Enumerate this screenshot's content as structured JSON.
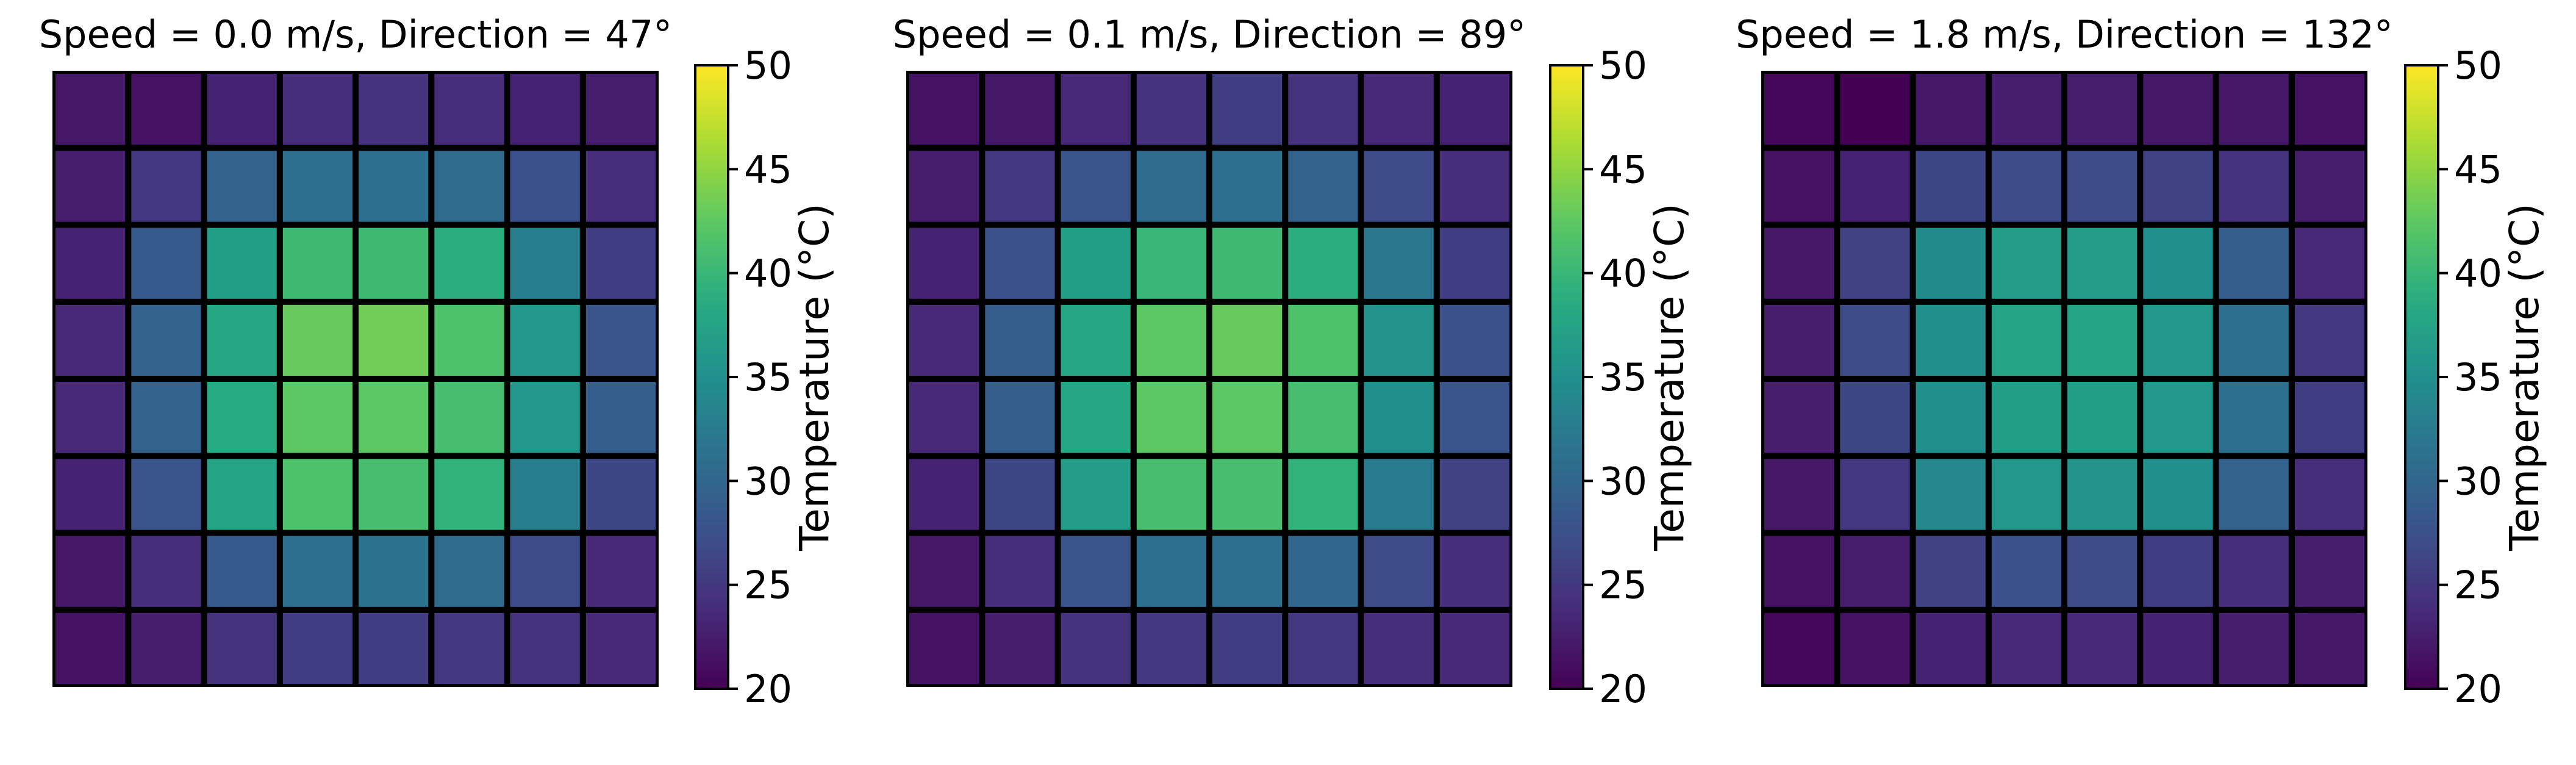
{
  "chart_data": [
    {
      "type": "heatmap",
      "title": "Speed = 0.0 m/s, Direction = 47°",
      "colorbar": {
        "label": "Temperature (°C)",
        "range": [
          20,
          50
        ],
        "ticks": [
          "20",
          "25",
          "30",
          "35",
          "40",
          "45",
          "50"
        ],
        "colormap": "viridis"
      },
      "grid": [
        [
          22.0,
          21.5,
          23.0,
          24.0,
          24.5,
          24.0,
          23.0,
          22.5
        ],
        [
          22.5,
          25.0,
          29.5,
          31.0,
          31.0,
          30.5,
          27.5,
          24.0
        ],
        [
          23.0,
          28.5,
          37.0,
          40.5,
          40.5,
          39.0,
          33.0,
          25.5
        ],
        [
          23.5,
          29.5,
          38.0,
          43.0,
          43.5,
          41.5,
          36.0,
          28.0
        ],
        [
          23.5,
          29.5,
          38.5,
          42.5,
          42.5,
          41.0,
          36.0,
          29.0
        ],
        [
          23.0,
          28.0,
          37.5,
          41.5,
          41.0,
          39.5,
          33.0,
          26.5
        ],
        [
          22.0,
          24.0,
          28.5,
          31.0,
          31.5,
          30.5,
          27.0,
          23.5
        ],
        [
          21.5,
          22.5,
          24.5,
          25.5,
          25.5,
          25.0,
          24.5,
          23.5
        ]
      ]
    },
    {
      "type": "heatmap",
      "title": "Speed = 0.1 m/s, Direction = 89°",
      "colorbar": {
        "label": "Temperature (°C)",
        "range": [
          20,
          50
        ],
        "ticks": [
          "20",
          "25",
          "30",
          "35",
          "40",
          "45",
          "50"
        ],
        "colormap": "viridis"
      },
      "grid": [
        [
          21.5,
          22.0,
          23.5,
          24.5,
          25.5,
          24.5,
          23.5,
          23.0
        ],
        [
          22.5,
          25.0,
          28.0,
          30.5,
          31.0,
          29.5,
          27.0,
          24.0
        ],
        [
          23.0,
          27.5,
          37.0,
          40.0,
          40.5,
          39.0,
          32.0,
          25.5
        ],
        [
          23.5,
          29.0,
          38.0,
          42.5,
          43.0,
          41.5,
          35.5,
          27.5
        ],
        [
          23.5,
          29.0,
          38.0,
          42.5,
          42.5,
          41.0,
          35.0,
          28.0
        ],
        [
          23.0,
          26.5,
          36.5,
          41.0,
          41.0,
          39.5,
          32.5,
          26.0
        ],
        [
          22.0,
          24.0,
          28.0,
          31.0,
          31.0,
          30.0,
          27.0,
          24.0
        ],
        [
          21.5,
          22.5,
          24.5,
          25.0,
          25.5,
          25.0,
          24.0,
          23.5
        ]
      ]
    },
    {
      "type": "heatmap",
      "title": "Speed = 1.8 m/s, Direction = 132°",
      "colorbar": {
        "label": "Temperature (°C)",
        "range": [
          20,
          50
        ],
        "ticks": [
          "20",
          "25",
          "30",
          "35",
          "40",
          "45",
          "50"
        ],
        "colormap": "viridis"
      },
      "grid": [
        [
          20.5,
          20.0,
          22.0,
          22.5,
          22.5,
          22.0,
          22.0,
          21.5
        ],
        [
          21.5,
          23.0,
          26.5,
          27.0,
          27.0,
          26.0,
          24.5,
          22.5
        ],
        [
          22.0,
          26.0,
          34.5,
          36.5,
          36.5,
          35.0,
          29.0,
          23.5
        ],
        [
          22.5,
          27.0,
          35.0,
          37.5,
          37.5,
          36.0,
          31.0,
          25.0
        ],
        [
          22.5,
          26.5,
          35.0,
          37.0,
          37.0,
          36.0,
          31.0,
          25.5
        ],
        [
          22.0,
          25.0,
          34.0,
          36.0,
          35.5,
          35.0,
          29.5,
          24.0
        ],
        [
          21.5,
          22.5,
          26.0,
          27.5,
          27.0,
          25.5,
          24.0,
          22.5
        ],
        [
          20.5,
          21.5,
          23.0,
          23.5,
          23.5,
          23.0,
          22.5,
          22.0
        ]
      ]
    }
  ]
}
